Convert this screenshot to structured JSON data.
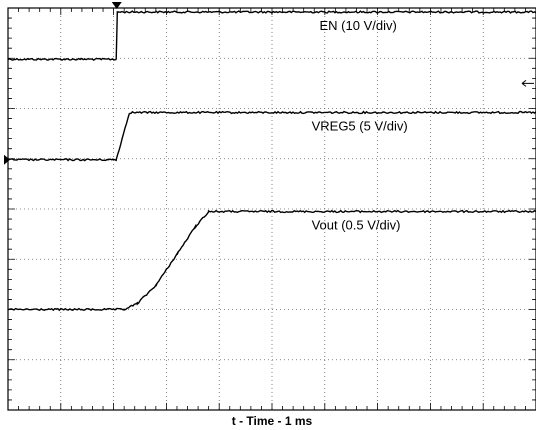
{
  "chart_data": {
    "type": "line",
    "title": "",
    "xlabel": "t - Time - 1 ms",
    "ylabel": "",
    "grid": true,
    "divisions": {
      "x": 10,
      "y": 8
    },
    "xlim": [
      0,
      10
    ],
    "ylim": [
      0,
      8
    ],
    "series": [
      {
        "name": "EN (10 V/div)",
        "label_position": "above trace, right of center",
        "points": [
          [
            0,
            6.98
          ],
          [
            2.05,
            6.98
          ],
          [
            2.07,
            7.92
          ],
          [
            10,
            7.92
          ]
        ]
      },
      {
        "name": "VREG5 (5 V/div)",
        "label_position": "above trace, right of center",
        "points": [
          [
            0,
            4.98
          ],
          [
            2.05,
            4.98
          ],
          [
            2.3,
            5.92
          ],
          [
            10,
            5.92
          ]
        ]
      },
      {
        "name": "Vout (0.5 V/div)",
        "label_position": "above trace, right of center",
        "points": [
          [
            0,
            2.0
          ],
          [
            2.2,
            2.0
          ],
          [
            2.45,
            2.12
          ],
          [
            2.8,
            2.48
          ],
          [
            3.2,
            3.1
          ],
          [
            3.55,
            3.65
          ],
          [
            3.8,
            3.95
          ],
          [
            10,
            3.95
          ]
        ]
      }
    ]
  },
  "colors": {
    "trace": "#000000",
    "frame": "#000000",
    "grid_dots": "#666666"
  }
}
